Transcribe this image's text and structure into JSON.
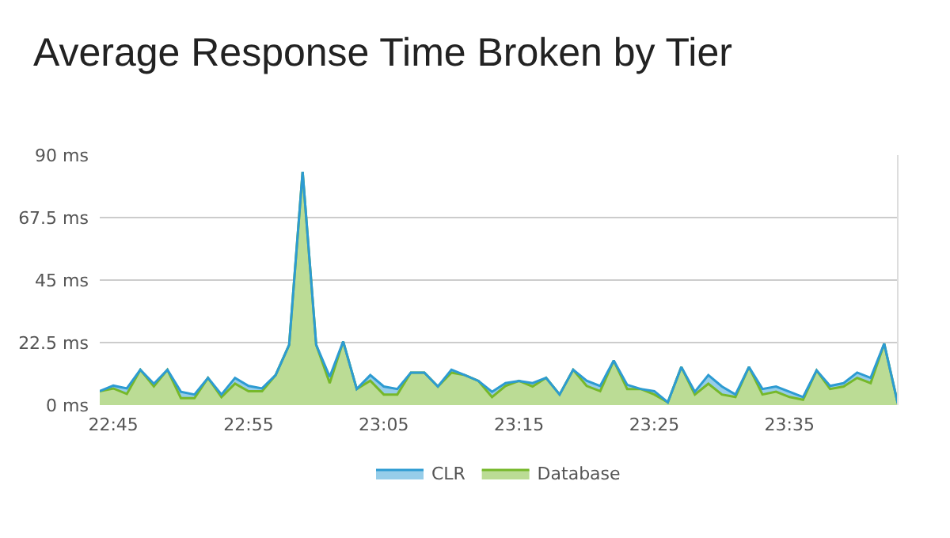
{
  "chart_data": {
    "type": "area",
    "title": "Average Response Time Broken by Tier",
    "x": [
      22.7333,
      22.75,
      22.7667,
      22.7833,
      22.8,
      22.8167,
      22.8333,
      22.85,
      22.8667,
      22.8833,
      22.9,
      22.9167,
      22.9333,
      22.95,
      22.9667,
      22.9833,
      23.0,
      23.0167,
      23.0333,
      23.05,
      23.0667,
      23.0833,
      23.1,
      23.1167,
      23.1333,
      23.15,
      23.1667,
      23.1833,
      23.2,
      23.2167,
      23.2333,
      23.25,
      23.2667,
      23.2833,
      23.3,
      23.3167,
      23.3333,
      23.35,
      23.3667,
      23.3833,
      23.4,
      23.4167,
      23.4333,
      23.45,
      23.4667,
      23.4833,
      23.5,
      23.5167,
      23.5333,
      23.55,
      23.5667,
      23.5833,
      23.6,
      23.6167,
      23.6333,
      23.65,
      23.6667,
      23.6833,
      23.7,
      23.7167
    ],
    "series": [
      {
        "name": "Database",
        "color": "#76b82a",
        "values": [
          5,
          6,
          4,
          12.7,
          6.7,
          12.7,
          2.5,
          2.5,
          9.8,
          2.9,
          7.7,
          5,
          5,
          10.8,
          21.7,
          84,
          21.7,
          7.9,
          22.9,
          5.8,
          8.8,
          3.8,
          3.8,
          11.7,
          11.7,
          6.7,
          11.7,
          10.8,
          8.7,
          2.9,
          6.9,
          8.7,
          6.7,
          9.8,
          3.8,
          12.7,
          6.9,
          5,
          16,
          5.8,
          5.8,
          3.8,
          1,
          13.7,
          3.8,
          7.7,
          3.8,
          2.9,
          13.7,
          3.8,
          4.8,
          2.9,
          1.9,
          12.5,
          5.8,
          6.7,
          9.8,
          7.9,
          22.1,
          0.6
        ]
      },
      {
        "name": "CLR",
        "color": "#2d9bd2",
        "values": [
          0,
          1,
          2,
          0,
          1,
          0,
          2.3,
          1.3,
          0,
          0.9,
          2.1,
          1.9,
          1,
          0,
          0,
          0,
          0,
          2.3,
          0,
          0,
          2,
          2.9,
          2,
          0,
          0,
          0,
          1,
          0,
          0,
          1.9,
          1,
          0,
          1.2,
          0,
          0,
          0,
          1.9,
          1.9,
          0,
          1.5,
          0,
          1.2,
          0,
          0,
          1,
          3.1,
          2.9,
          0.9,
          0,
          2,
          1.9,
          1.9,
          1,
          0,
          1.1,
          1.2,
          1.9,
          1.9,
          0,
          0
        ]
      }
    ],
    "stacked": true,
    "xlim": [
      22.7333,
      23.7167
    ],
    "xticks": [
      {
        "value": 22.75,
        "label": "22:45"
      },
      {
        "value": 22.9167,
        "label": "22:55"
      },
      {
        "value": 23.0833,
        "label": "23:05"
      },
      {
        "value": 23.25,
        "label": "23:15"
      },
      {
        "value": 23.4167,
        "label": "23:25"
      },
      {
        "value": 23.5833,
        "label": "23:35"
      }
    ],
    "ylim": [
      0,
      90
    ],
    "yticks": [
      {
        "value": 0,
        "label": "0 ms"
      },
      {
        "value": 22.5,
        "label": "22.5 ms"
      },
      {
        "value": 45,
        "label": "45 ms"
      },
      {
        "value": 67.5,
        "label": "67.5 ms"
      },
      {
        "value": 90,
        "label": "90 ms"
      }
    ],
    "grid": "y",
    "legend": "bottom",
    "marker": "none",
    "line_style": "solid"
  }
}
